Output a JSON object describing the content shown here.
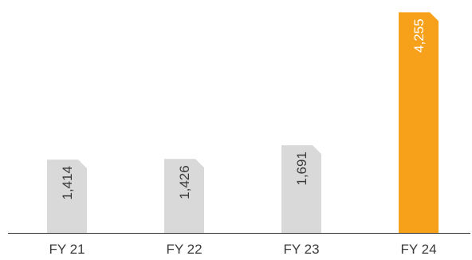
{
  "chart_data": {
    "type": "bar",
    "categories": [
      "FY 21",
      "FY 22",
      "FY 23",
      "FY 24"
    ],
    "values": [
      1414,
      1426,
      1691,
      4255
    ],
    "data_labels": [
      "1,414",
      "1,426",
      "1,691",
      "4,255"
    ],
    "title": "",
    "xlabel": "",
    "ylabel": "",
    "ylim": [
      0,
      4400
    ],
    "grid": false,
    "legend": "none",
    "colors": {
      "default_bar": "#d9d9d9",
      "highlight_bar": "#f7a11a",
      "default_label": "#3a3a3a",
      "highlight_label": "#ffffff",
      "axis": "#333333"
    },
    "highlight_index": 3
  }
}
